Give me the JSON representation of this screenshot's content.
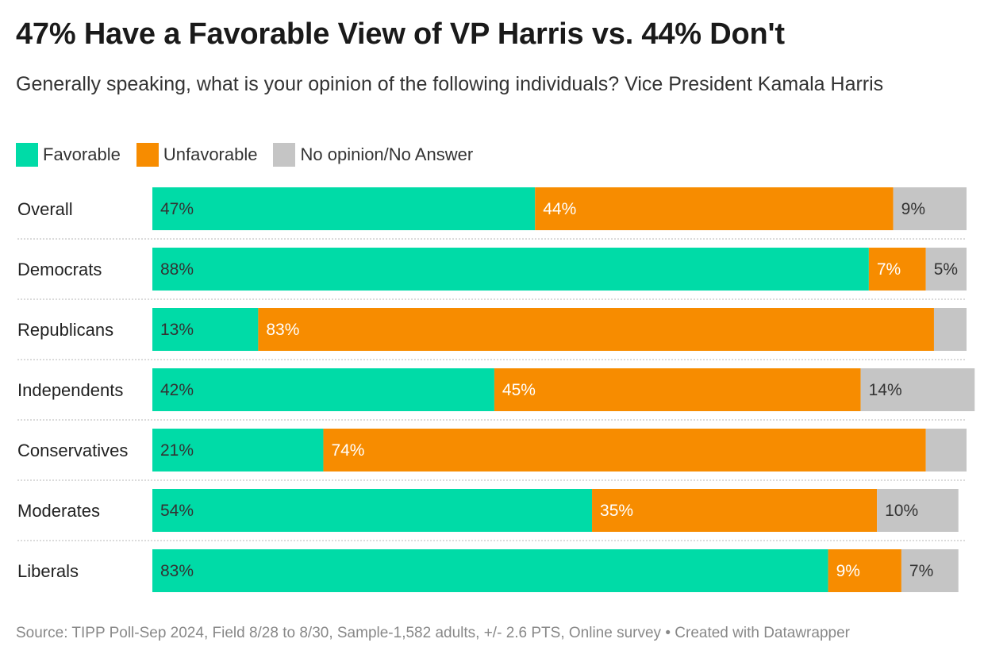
{
  "header": {
    "title": "47% Have a Favorable View of VP Harris vs. 44% Don't",
    "subtitle": "Generally speaking, what is your opinion of the following individuals? Vice President Kamala Harris"
  },
  "legend": [
    {
      "label": "Favorable",
      "color": "#00dba7"
    },
    {
      "label": "Unfavorable",
      "color": "#f78c00"
    },
    {
      "label": "No opinion/No Answer",
      "color": "#c5c5c5"
    }
  ],
  "footer": {
    "source": "Source: TIPP Poll-Sep 2024, Field 8/28 to 8/30, Sample-1,582 adults, +/- 2.6 PTS, Online survey • Created with Datawrapper"
  },
  "chart_data": {
    "type": "bar",
    "orientation": "horizontal",
    "stacked": true,
    "xlim": [
      0,
      100
    ],
    "categories": [
      "Overall",
      "Democrats",
      "Republicans",
      "Independents",
      "Conservatives",
      "Moderates",
      "Liberals"
    ],
    "series": [
      {
        "name": "Favorable",
        "color": "#00dba7",
        "values": [
          47,
          88,
          13,
          42,
          21,
          54,
          83
        ],
        "labels": [
          "47%",
          "88%",
          "13%",
          "42%",
          "21%",
          "54%",
          "83%"
        ],
        "label_color": "#333333"
      },
      {
        "name": "Unfavorable",
        "color": "#f78c00",
        "values": [
          44,
          7,
          83,
          45,
          74,
          35,
          9
        ],
        "labels": [
          "44%",
          "7%",
          "83%",
          "45%",
          "74%",
          "35%",
          "9%"
        ],
        "label_color": "#ffffff"
      },
      {
        "name": "No opinion/No Answer",
        "color": "#c5c5c5",
        "values": [
          9,
          5,
          4,
          14,
          5,
          10,
          7
        ],
        "labels": [
          "9%",
          "5%",
          "",
          "14%",
          "",
          "10%",
          "7%"
        ],
        "label_color": "#333333"
      }
    ]
  }
}
